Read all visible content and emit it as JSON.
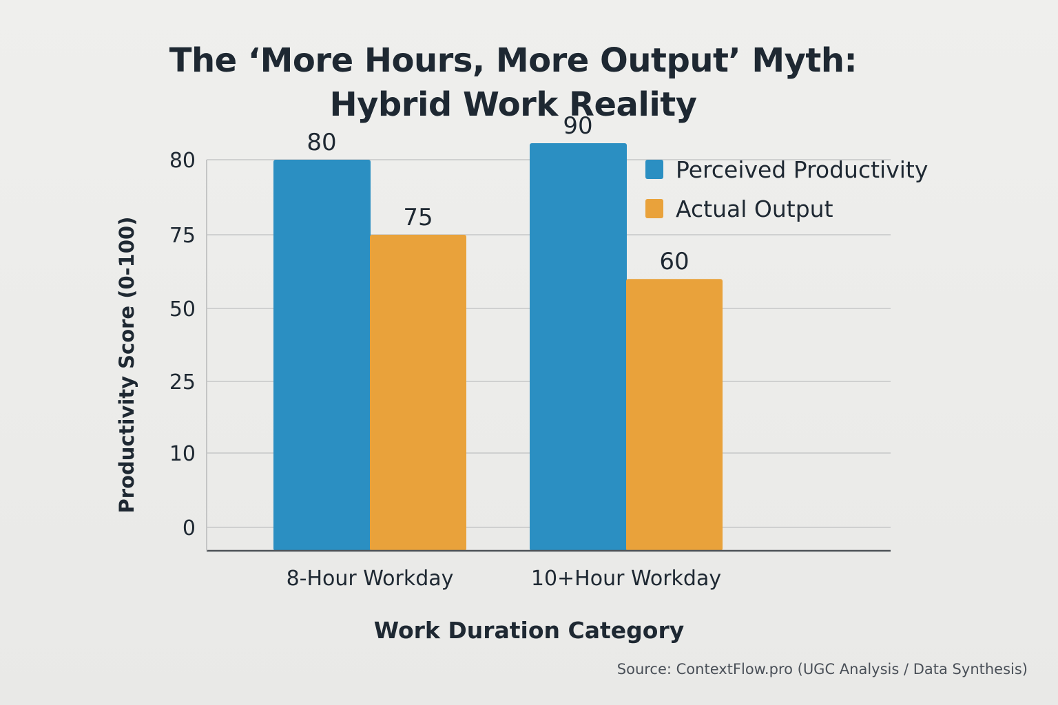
{
  "chart_data": {
    "type": "bar",
    "title_lines": [
      "The ‘More Hours, More Output’ Myth:",
      "Hybrid Work Reality"
    ],
    "xlabel": "Work Duration Category",
    "ylabel": "Productivity Score (0-100)",
    "categories": [
      "8-Hour Workday",
      "10+Hour Workday"
    ],
    "y_tick_labels": [
      "0",
      "10",
      "25",
      "50",
      "75",
      "80"
    ],
    "series": [
      {
        "name": "Perceived Productivity",
        "color": "#2b8fc2",
        "values": [
          80,
          90
        ]
      },
      {
        "name": "Actual Output",
        "color": "#e9a23b",
        "values": [
          75,
          60
        ]
      }
    ],
    "grid": true,
    "legend": "top-right",
    "source": "Source: ContextFlow.pro (UGC Analysis / Data Synthesis)"
  }
}
